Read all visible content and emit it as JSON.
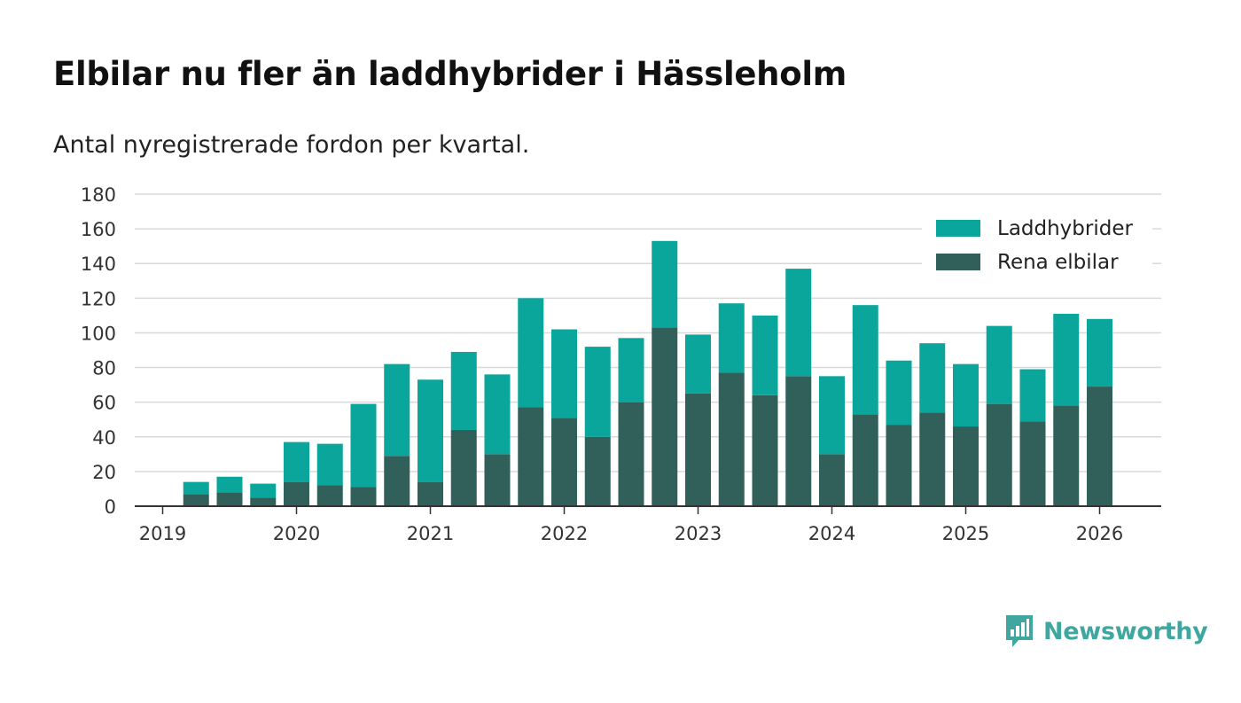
{
  "title": "Elbilar nu fler än laddhybrider i Hässleholm",
  "subtitle": "Antal nyregistrerade fordon per kvartal.",
  "brand": {
    "name": "Newsworthy",
    "logo_icon": "bar-chart-speech-bubble-icon"
  },
  "colors": {
    "laddhybrider": "#0ba69b",
    "elbilar": "#31605a",
    "grid": "#d9d9d9",
    "axis": "#333333"
  },
  "chart_data": {
    "type": "bar",
    "stacked": true,
    "title": "Elbilar nu fler än laddhybrider i Hässleholm",
    "subtitle": "Antal nyregistrerade fordon per kvartal.",
    "xlabel": "",
    "ylabel": "",
    "ylim": [
      0,
      180
    ],
    "yticks": [
      0,
      20,
      40,
      60,
      80,
      100,
      120,
      140,
      160,
      180
    ],
    "xticks": [
      "2019",
      "2020",
      "2021",
      "2022",
      "2023",
      "2024",
      "2025",
      "2026"
    ],
    "grid": true,
    "legend_position": "top-right",
    "categories": [
      "2019 Q1",
      "2019 Q2",
      "2019 Q3",
      "2019 Q4",
      "2020 Q1",
      "2020 Q2",
      "2020 Q3",
      "2020 Q4",
      "2021 Q1",
      "2021 Q2",
      "2021 Q3",
      "2021 Q4",
      "2022 Q1",
      "2022 Q2",
      "2022 Q3",
      "2022 Q4",
      "2023 Q1",
      "2023 Q2",
      "2023 Q3",
      "2023 Q4",
      "2024 Q1",
      "2024 Q2",
      "2024 Q3",
      "2024 Q4",
      "2025 Q1",
      "2025 Q2",
      "2025 Q3",
      "2025 Q4",
      "2026 Q1"
    ],
    "series": [
      {
        "name": "Rena elbilar",
        "values": [
          0,
          7,
          8,
          5,
          14,
          12,
          11,
          29,
          14,
          44,
          30,
          57,
          51,
          40,
          60,
          103,
          65,
          77,
          64,
          75,
          30,
          53,
          47,
          54,
          46,
          59,
          49,
          58,
          69
        ]
      },
      {
        "name": "Laddhybrider",
        "values": [
          0,
          7,
          9,
          8,
          23,
          24,
          48,
          53,
          59,
          45,
          46,
          63,
          51,
          52,
          37,
          50,
          34,
          40,
          46,
          62,
          45,
          63,
          37,
          40,
          36,
          45,
          30,
          53,
          39
        ]
      }
    ],
    "legend": [
      "Laddhybrider",
      "Rena elbilar"
    ]
  }
}
